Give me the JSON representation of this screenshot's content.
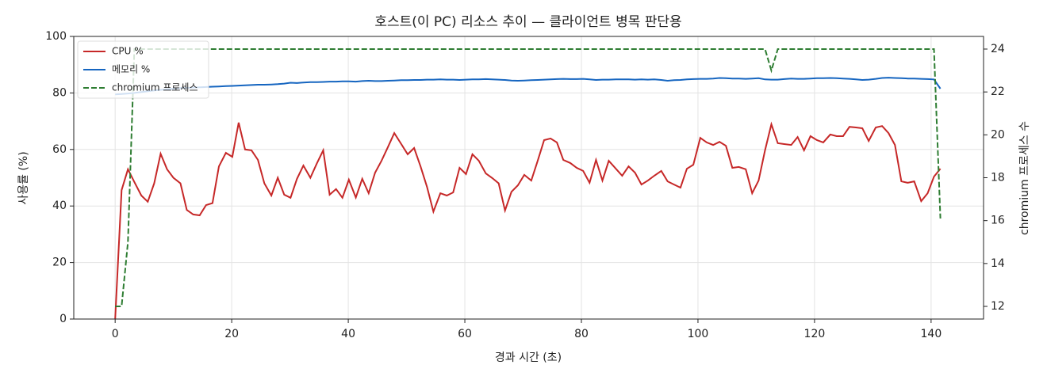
{
  "chart_data": {
    "type": "line",
    "title": "호스트(이 PC) 리소스 추이 — 클라이언트 병목 판단용",
    "x_label": "경과 시간 (초)",
    "y_label": "사용률 (%)",
    "y2_label": "chromium 프로세스 수",
    "xlim": [
      -7.1,
      149.0
    ],
    "xticks": [
      0,
      20,
      40,
      60,
      80,
      100,
      120,
      140
    ],
    "ylim": [
      0,
      100
    ],
    "yticks": [
      0,
      20,
      40,
      60,
      80,
      100
    ],
    "y2lim": [
      11.41,
      24.59
    ],
    "y2ticks": [
      12,
      14,
      16,
      18,
      20,
      22,
      24
    ],
    "grid": true,
    "legend": "upper left",
    "x": [
      0,
      1.1,
      2.2,
      3.3,
      4.5,
      5.6,
      6.7,
      7.8,
      8.9,
      10.0,
      11.2,
      12.3,
      13.4,
      14.5,
      15.6,
      16.7,
      17.8,
      19.0,
      20.1,
      21.2,
      22.3,
      23.4,
      24.5,
      25.6,
      26.8,
      27.9,
      29.0,
      30.1,
      31.2,
      32.3,
      33.5,
      34.6,
      35.7,
      36.8,
      37.9,
      39.0,
      40.1,
      41.3,
      42.4,
      43.5,
      44.6,
      45.7,
      46.8,
      47.9,
      49.1,
      50.2,
      51.3,
      52.4,
      53.5,
      54.6,
      55.8,
      56.9,
      58.0,
      59.1,
      60.2,
      61.3,
      62.4,
      63.6,
      64.7,
      65.8,
      66.9,
      68.0,
      69.1,
      70.2,
      71.4,
      72.5,
      73.6,
      74.7,
      75.8,
      76.9,
      78.1,
      79.2,
      80.3,
      81.4,
      82.5,
      83.6,
      84.7,
      85.9,
      87.0,
      88.1,
      89.2,
      90.3,
      91.4,
      92.5,
      93.7,
      94.8,
      95.9,
      97.0,
      98.1,
      99.2,
      100.4,
      101.5,
      102.6,
      103.7,
      104.8,
      105.9,
      107.0,
      108.2,
      109.3,
      110.4,
      111.5,
      112.6,
      113.7,
      114.8,
      116.0,
      117.1,
      118.2,
      119.3,
      120.4,
      121.5,
      122.7,
      123.8,
      124.9,
      126.0,
      127.1,
      128.2,
      129.3,
      130.5,
      131.6,
      132.7,
      133.8,
      134.9,
      136.0,
      137.1,
      138.3,
      139.4,
      140.5,
      141.6
    ],
    "series": [
      {
        "name": "CPU %",
        "color": "#c62828",
        "line_style": "solid",
        "values": [
          0,
          45.6,
          53,
          48.5,
          43.7,
          41.5,
          48,
          58.5,
          53,
          50,
          48,
          38.6,
          37,
          36.7,
          40.3,
          41,
          54,
          58.8,
          57.4,
          69.5,
          60,
          59.7,
          56.3,
          48,
          43.7,
          50,
          44,
          42.9,
          49.6,
          54.3,
          50,
          55,
          59.7,
          44,
          46,
          42.9,
          49.3,
          43,
          49.6,
          44.5,
          51.8,
          56,
          60.8,
          65.8,
          61.9,
          58.3,
          60.5,
          54,
          46.8,
          38,
          44.5,
          43.7,
          44.8,
          53.5,
          51.3,
          58.3,
          56,
          51.5,
          49.9,
          48,
          38.4,
          45,
          47.3,
          51,
          49,
          56,
          63.3,
          63.9,
          62.5,
          56.3,
          55.2,
          53.5,
          52.4,
          48.2,
          56.3,
          49,
          56,
          53.2,
          50.7,
          54,
          51.8,
          47.6,
          49,
          50.7,
          52.4,
          48.7,
          47.6,
          46.5,
          53.2,
          54.6,
          64.1,
          62.5,
          61.6,
          62.7,
          61.3,
          53.5,
          53.8,
          53,
          44.5,
          49,
          59.7,
          68.9,
          62.2,
          61.9,
          61.6,
          64.4,
          59.7,
          64.7,
          63.3,
          62.5,
          65.3,
          64.7,
          64.7,
          68,
          67.8,
          67.5,
          63,
          67.8,
          68.3,
          65.8,
          61.6,
          48.7,
          48.2,
          48.7,
          41.7,
          44.5,
          50.4,
          53.2
        ]
      },
      {
        "name": "메모리 %",
        "color": "#1565c0",
        "line_style": "solid",
        "values": [
          79.5,
          79.6,
          79.8,
          80,
          80.3,
          80.6,
          80.9,
          81.1,
          81.3,
          81.5,
          81.7,
          81.8,
          81.9,
          82,
          82.1,
          82.2,
          82.3,
          82.4,
          82.5,
          82.6,
          82.7,
          82.8,
          82.9,
          82.9,
          83,
          83.1,
          83.3,
          83.6,
          83.5,
          83.7,
          83.8,
          83.8,
          83.9,
          84,
          84,
          84.1,
          84.1,
          84,
          84.2,
          84.3,
          84.2,
          84.2,
          84.3,
          84.4,
          84.5,
          84.5,
          84.6,
          84.6,
          84.7,
          84.7,
          84.8,
          84.7,
          84.7,
          84.6,
          84.7,
          84.8,
          84.8,
          84.9,
          84.8,
          84.7,
          84.6,
          84.4,
          84.3,
          84.4,
          84.5,
          84.6,
          84.7,
          84.8,
          84.9,
          85,
          84.9,
          84.9,
          85,
          84.8,
          84.6,
          84.7,
          84.7,
          84.8,
          84.8,
          84.8,
          84.7,
          84.8,
          84.7,
          84.8,
          84.6,
          84.3,
          84.5,
          84.6,
          84.8,
          84.9,
          85,
          85,
          85.1,
          85.3,
          85.2,
          85.1,
          85.1,
          85,
          85.1,
          85.2,
          84.8,
          84.7,
          84.7,
          84.9,
          85.1,
          85,
          85,
          85.1,
          85.2,
          85.2,
          85.3,
          85.2,
          85.1,
          85,
          84.8,
          84.6,
          84.7,
          85,
          85.3,
          85.4,
          85.3,
          85.2,
          85.1,
          85.1,
          85,
          84.9,
          84.8,
          81.5
        ]
      },
      {
        "name": "chromium 프로세스",
        "color": "#2e7d32",
        "line_style": "dashed",
        "axis": "y2",
        "values": [
          12,
          12,
          15,
          24,
          24,
          24,
          24,
          24,
          24,
          24,
          24,
          24,
          24,
          24,
          24,
          24,
          24,
          24,
          24,
          24,
          24,
          24,
          24,
          24,
          24,
          24,
          24,
          24,
          24,
          24,
          24,
          24,
          24,
          24,
          24,
          24,
          24,
          24,
          24,
          24,
          24,
          24,
          24,
          24,
          24,
          24,
          24,
          24,
          24,
          24,
          24,
          24,
          24,
          24,
          24,
          24,
          24,
          24,
          24,
          24,
          24,
          24,
          24,
          24,
          24,
          24,
          24,
          24,
          24,
          24,
          24,
          24,
          24,
          24,
          24,
          24,
          24,
          24,
          24,
          24,
          24,
          24,
          24,
          24,
          24,
          24,
          24,
          24,
          24,
          24,
          24,
          24,
          24,
          24,
          24,
          24,
          24,
          24,
          24,
          24,
          24,
          23,
          24,
          24,
          24,
          24,
          24,
          24,
          24,
          24,
          24,
          24,
          24,
          24,
          24,
          24,
          24,
          24,
          24,
          24,
          24,
          24,
          24,
          24,
          24,
          24,
          24,
          16.1
        ]
      }
    ]
  }
}
